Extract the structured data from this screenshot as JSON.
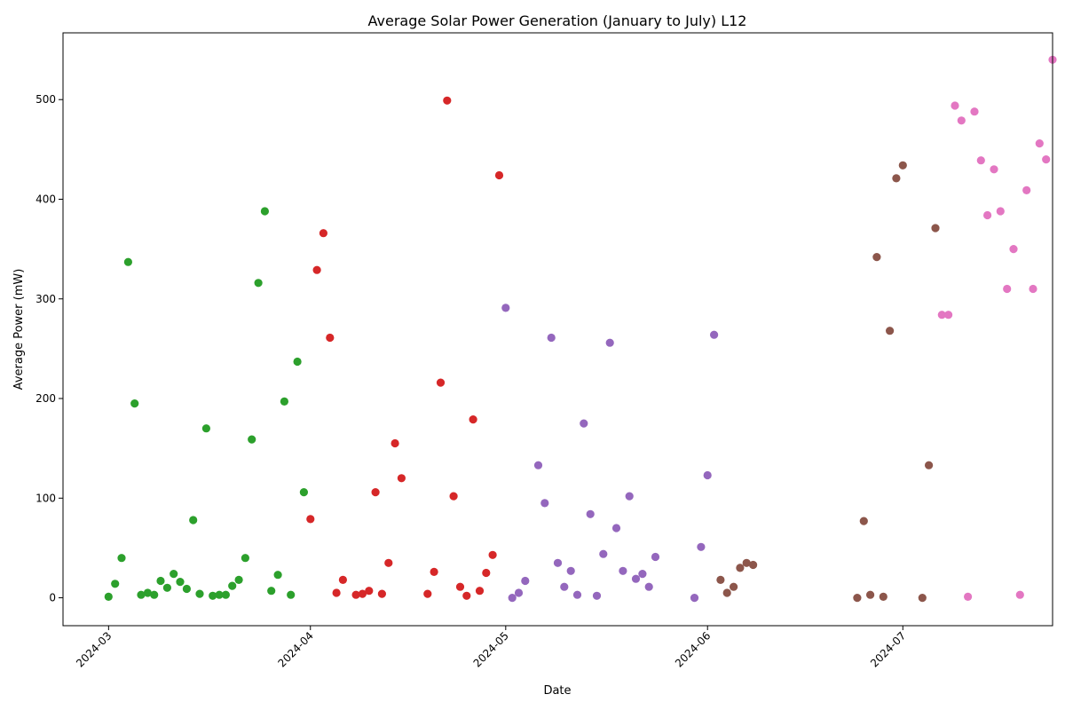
{
  "chart_data": {
    "type": "scatter",
    "title": "Average Solar Power Generation (January to July) L12",
    "xlabel": "Date",
    "ylabel": "Average Power (mW)",
    "xlim": [
      "2024-02-23",
      "2024-07-24"
    ],
    "ylim": [
      -28,
      567
    ],
    "x_ticks": [
      "2024-03",
      "2024-04",
      "2024-05",
      "2024-06",
      "2024-07"
    ],
    "y_ticks": [
      0,
      100,
      200,
      300,
      400,
      500
    ],
    "grid": false,
    "legend": "none",
    "series": [
      {
        "color": "#2ca02c",
        "points": [
          [
            "2024-03-01",
            1
          ],
          [
            "2024-03-02",
            14
          ],
          [
            "2024-03-03",
            40
          ],
          [
            "2024-03-04",
            337
          ],
          [
            "2024-03-05",
            195
          ],
          [
            "2024-03-06",
            3
          ],
          [
            "2024-03-07",
            5
          ],
          [
            "2024-03-08",
            3
          ],
          [
            "2024-03-09",
            17
          ],
          [
            "2024-03-10",
            10
          ],
          [
            "2024-03-11",
            24
          ],
          [
            "2024-03-12",
            16
          ],
          [
            "2024-03-13",
            9
          ],
          [
            "2024-03-14",
            78
          ],
          [
            "2024-03-15",
            4
          ],
          [
            "2024-03-16",
            170
          ],
          [
            "2024-03-17",
            2
          ],
          [
            "2024-03-18",
            3
          ],
          [
            "2024-03-19",
            3
          ],
          [
            "2024-03-20",
            12
          ],
          [
            "2024-03-21",
            18
          ],
          [
            "2024-03-22",
            40
          ],
          [
            "2024-03-23",
            159
          ],
          [
            "2024-03-24",
            316
          ],
          [
            "2024-03-25",
            388
          ],
          [
            "2024-03-26",
            7
          ],
          [
            "2024-03-27",
            23
          ],
          [
            "2024-03-28",
            197
          ],
          [
            "2024-03-29",
            3
          ],
          [
            "2024-03-30",
            237
          ],
          [
            "2024-03-31",
            106
          ]
        ]
      },
      {
        "color": "#d62728",
        "points": [
          [
            "2024-04-01",
            79
          ],
          [
            "2024-04-02",
            329
          ],
          [
            "2024-04-03",
            366
          ],
          [
            "2024-04-04",
            261
          ],
          [
            "2024-04-05",
            5
          ],
          [
            "2024-04-06",
            18
          ],
          [
            "2024-04-08",
            3
          ],
          [
            "2024-04-09",
            4
          ],
          [
            "2024-04-10",
            7
          ],
          [
            "2024-04-11",
            106
          ],
          [
            "2024-04-12",
            4
          ],
          [
            "2024-04-13",
            35
          ],
          [
            "2024-04-14",
            155
          ],
          [
            "2024-04-15",
            120
          ],
          [
            "2024-04-19",
            4
          ],
          [
            "2024-04-20",
            26
          ],
          [
            "2024-04-21",
            216
          ],
          [
            "2024-04-22",
            499
          ],
          [
            "2024-04-23",
            102
          ],
          [
            "2024-04-24",
            11
          ],
          [
            "2024-04-25",
            2
          ],
          [
            "2024-04-26",
            179
          ],
          [
            "2024-04-27",
            7
          ],
          [
            "2024-04-28",
            25
          ],
          [
            "2024-04-29",
            43
          ],
          [
            "2024-04-30",
            424
          ]
        ]
      },
      {
        "color": "#9467bd",
        "points": [
          [
            "2024-05-01",
            291
          ],
          [
            "2024-05-02",
            0
          ],
          [
            "2024-05-03",
            5
          ],
          [
            "2024-05-04",
            17
          ],
          [
            "2024-05-06",
            133
          ],
          [
            "2024-05-07",
            95
          ],
          [
            "2024-05-08",
            261
          ],
          [
            "2024-05-09",
            35
          ],
          [
            "2024-05-10",
            11
          ],
          [
            "2024-05-11",
            27
          ],
          [
            "2024-05-12",
            3
          ],
          [
            "2024-05-13",
            175
          ],
          [
            "2024-05-14",
            84
          ],
          [
            "2024-05-15",
            2
          ],
          [
            "2024-05-16",
            44
          ],
          [
            "2024-05-17",
            256
          ],
          [
            "2024-05-18",
            70
          ],
          [
            "2024-05-19",
            27
          ],
          [
            "2024-05-20",
            102
          ],
          [
            "2024-05-21",
            19
          ],
          [
            "2024-05-22",
            24
          ],
          [
            "2024-05-23",
            11
          ],
          [
            "2024-05-24",
            41
          ],
          [
            "2024-05-30",
            0
          ],
          [
            "2024-05-31",
            51
          ],
          [
            "2024-06-01",
            123
          ],
          [
            "2024-06-02",
            264
          ]
        ]
      },
      {
        "color": "#8c564b",
        "points": [
          [
            "2024-06-03",
            18
          ],
          [
            "2024-06-04",
            5
          ],
          [
            "2024-06-05",
            11
          ],
          [
            "2024-06-06",
            30
          ],
          [
            "2024-06-07",
            35
          ],
          [
            "2024-06-08",
            33
          ],
          [
            "2024-06-24",
            0
          ],
          [
            "2024-06-25",
            77
          ],
          [
            "2024-06-26",
            3
          ],
          [
            "2024-06-27",
            342
          ],
          [
            "2024-06-28",
            1
          ],
          [
            "2024-06-29",
            268
          ],
          [
            "2024-06-30",
            421
          ],
          [
            "2024-07-01",
            434
          ],
          [
            "2024-07-04",
            0
          ],
          [
            "2024-07-05",
            133
          ],
          [
            "2024-07-06",
            371
          ]
        ]
      },
      {
        "color": "#e377c2",
        "points": [
          [
            "2024-07-07",
            284
          ],
          [
            "2024-07-08",
            284
          ],
          [
            "2024-07-09",
            494
          ],
          [
            "2024-07-10",
            479
          ],
          [
            "2024-07-11",
            1
          ],
          [
            "2024-07-12",
            488
          ],
          [
            "2024-07-13",
            439
          ],
          [
            "2024-07-14",
            384
          ],
          [
            "2024-07-15",
            430
          ],
          [
            "2024-07-16",
            388
          ],
          [
            "2024-07-17",
            310
          ],
          [
            "2024-07-18",
            350
          ],
          [
            "2024-07-19",
            3
          ],
          [
            "2024-07-20",
            409
          ],
          [
            "2024-07-21",
            310
          ],
          [
            "2024-07-22",
            456
          ],
          [
            "2024-07-23",
            440
          ],
          [
            "2024-07-24",
            540
          ]
        ]
      }
    ]
  }
}
